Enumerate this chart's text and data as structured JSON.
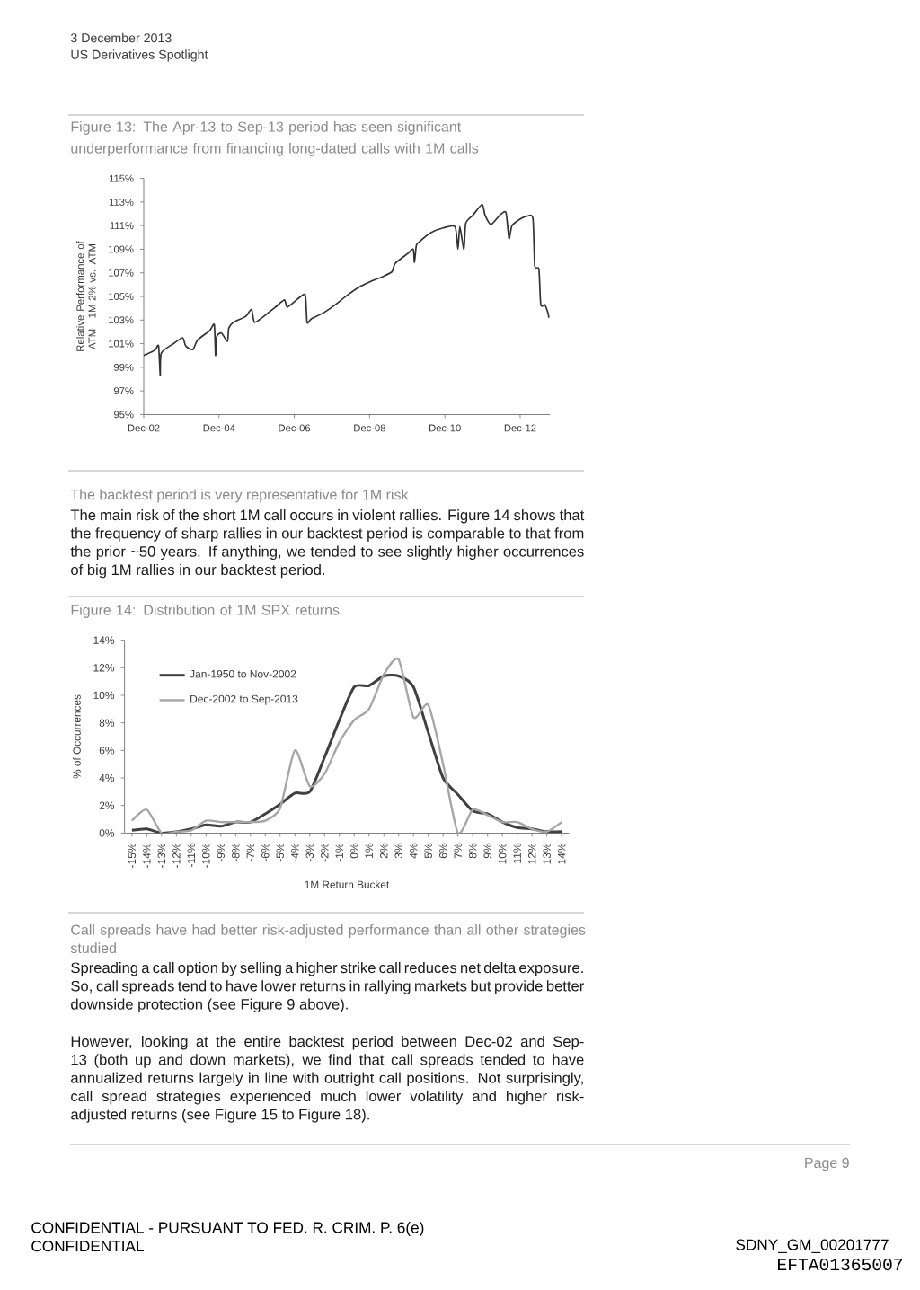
{
  "chart_data": [
    {
      "type": "other",
      "annotations": [
        "3 December 2013",
        "US Derivatives Spotlight"
      ]
    },
    {
      "type": "line",
      "title": "Figure 13: The Apr-13 to Sep-13 period has seen significant underperformance from financing long-dated calls with 1M calls",
      "ylabel": "Relative Performance of ATM - 1M 2% vs. ATM",
      "color": "#333333",
      "x": [
        "2002-12-01",
        "2003-02-15",
        "2003-03-25",
        "2003-04-24",
        "2003-05-10",
        "2003-05-20",
        "2003-09-16",
        "2003-12-13",
        "2004-01-12",
        "2004-03-21",
        "2004-05-06",
        "2004-09-01",
        "2004-10-16",
        "2004-10-28",
        "2004-11-09",
        "2004-12-25",
        "2005-02-21",
        "2005-03-05",
        "2005-04-19",
        "2005-08-15",
        "2005-10-12",
        "2005-11-10",
        "2006-02-06",
        "2006-06-01",
        "2006-08-28",
        "2006-09-25",
        "2007-01-19",
        "2007-03-18",
        "2007-04-04",
        "2007-05-15",
        "2007-09-09",
        "2008-01-03",
        "2008-04-28",
        "2008-08-22",
        "2008-12-18",
        "2009-04-12",
        "2009-07-07",
        "2009-08-06",
        "2009-12-01",
        "2010-01-28",
        "2010-02-09",
        "2010-02-27",
        "2010-03-25",
        "2010-07-19",
        "2010-11-15",
        "2011-03-10",
        "2011-04-07",
        "2011-04-25",
        "2011-06-04",
        "2011-06-22",
        "2011-09-01",
        "2011-11-28",
        "2011-12-25",
        "2012-02-22",
        "2012-05-19",
        "2012-07-16",
        "2012-08-15",
        "2012-09-13",
        "2012-12-10",
        "2013-02-07",
        "2013-04-04",
        "2013-04-22",
        "2013-06-01",
        "2013-06-19",
        "2013-07-29",
        "2013-08-28",
        "2013-09-06"
      ],
      "values": [
        100.0,
        100.3,
        100.5,
        100.8,
        98.3,
        100.2,
        101.0,
        101.5,
        100.8,
        100.5,
        101.3,
        102.1,
        102.6,
        100.0,
        101.6,
        101.9,
        101.2,
        102.3,
        102.8,
        103.3,
        103.9,
        102.8,
        103.3,
        104.1,
        104.7,
        104.1,
        104.9,
        105.1,
        102.8,
        103.1,
        103.6,
        104.3,
        105.1,
        105.8,
        106.3,
        106.7,
        107.1,
        107.8,
        108.6,
        109.0,
        107.9,
        109.3,
        109.6,
        110.4,
        110.8,
        110.9,
        109.0,
        110.9,
        109.0,
        111.2,
        111.9,
        112.8,
        111.9,
        111.1,
        111.9,
        112.1,
        109.9,
        111.0,
        111.6,
        111.8,
        111.6,
        107.6,
        107.3,
        104.3,
        104.3,
        103.6,
        103.2
      ],
      "xlim": [
        "2002-12",
        "2013-09-15"
      ],
      "xticks": [
        {
          "value": "2002-12",
          "label": "Dec-02"
        },
        {
          "value": "2004-12",
          "label": "Dec-04"
        },
        {
          "value": "2006-12",
          "label": "Dec-06"
        },
        {
          "value": "2008-12",
          "label": "Dec-08"
        },
        {
          "value": "2010-12",
          "label": "Dec-10"
        },
        {
          "value": "2012-12",
          "label": "Dec-12"
        }
      ],
      "ylim": [
        95,
        115
      ],
      "yticks": [
        {
          "value": 95,
          "label": "95%"
        },
        {
          "value": 97,
          "label": "97%"
        },
        {
          "value": 99,
          "label": "99%"
        },
        {
          "value": 101,
          "label": "101%"
        },
        {
          "value": 103,
          "label": "103%"
        },
        {
          "value": 105,
          "label": "105%"
        },
        {
          "value": 107,
          "label": "107%"
        },
        {
          "value": 109,
          "label": "109%"
        },
        {
          "value": 111,
          "label": "111%"
        },
        {
          "value": 113,
          "label": "113%"
        },
        {
          "value": 115,
          "label": "115%"
        }
      ]
    },
    {
      "type": "other",
      "title": "The backtest period is very representative for 1M risk",
      "annotations": [
        "The main risk of the short 1M call occurs in violent rallies. Figure 14 shows that the frequency of sharp rallies in our backtest period is comparable to that from the prior ~50 years. If anything, we tended to see slightly higher occurrences of big 1M rallies in our backtest period."
      ]
    },
    {
      "type": "line",
      "title": "Figure 14: Distribution of 1M SPX returns",
      "xlabel": "1M Return Bucket",
      "ylabel": "% of Occurrences",
      "categories": [
        "-15%",
        "-14%",
        "-13%",
        "-12%",
        "-11%",
        "-10%",
        "-9%",
        "-8%",
        "-7%",
        "-6%",
        "-5%",
        "-4%",
        "-3%",
        "-2%",
        "-1%",
        "0%",
        "1%",
        "2%",
        "3%",
        "4%",
        "5%",
        "6%",
        "7%",
        "8%",
        "9%",
        "10%",
        "11%",
        "12%",
        "13%",
        "14%"
      ],
      "series": [
        {
          "name": "Jan-1950 to Nov-2002",
          "color": "#404040",
          "values": [
            0.2,
            0.3,
            0.0,
            0.1,
            0.3,
            0.6,
            0.5,
            0.8,
            0.8,
            1.4,
            2.1,
            2.9,
            3.0,
            5.5,
            8.2,
            10.6,
            10.7,
            11.4,
            11.4,
            10.6,
            7.3,
            4.0,
            2.8,
            1.6,
            1.4,
            0.8,
            0.4,
            0.3,
            0.1,
            0.1
          ]
        },
        {
          "name": "Dec-2002 to Sep-2013",
          "color": "#a6a6a6",
          "values": [
            0.9,
            1.7,
            0.0,
            0.1,
            0.2,
            0.9,
            0.8,
            0.8,
            0.8,
            0.9,
            1.8,
            6.0,
            3.4,
            4.3,
            6.6,
            8.2,
            9.0,
            11.5,
            12.6,
            8.4,
            9.3,
            5.0,
            0.0,
            1.7,
            1.3,
            0.8,
            0.8,
            0.3,
            0.1,
            0.8
          ]
        }
      ],
      "ylim": [
        0,
        14
      ],
      "yticks": [
        {
          "value": 0,
          "label": "0%"
        },
        {
          "value": 2,
          "label": "2%"
        },
        {
          "value": 4,
          "label": "4%"
        },
        {
          "value": 6,
          "label": "6%"
        },
        {
          "value": 8,
          "label": "8%"
        },
        {
          "value": 10,
          "label": "10%"
        },
        {
          "value": 12,
          "label": "12%"
        },
        {
          "value": 14,
          "label": "14%"
        }
      ],
      "legend": "top left"
    },
    {
      "type": "other",
      "title": "Call spreads have had better risk-adjusted performance than all other strategies studied",
      "annotations": [
        "Spreading a call option by selling a higher strike call reduces net delta exposure. So, call spreads tend to have lower returns in rallying markets but provide better downside protection (see Figure 9 above).",
        "However, looking at the entire backtest period between Dec-02 and Sep-13 (both up and down markets), we find that call spreads tended to have annualized returns largely in line with outright call positions. Not surprisingly, call spread strategies experienced much lower volatility and higher risk-adjusted returns (see Figure 15 to Figure 18)."
      ]
    },
    {
      "type": "other",
      "annotations": [
        "Page 9",
        "CONFIDENTIAL - PURSUANT TO FED. R. CRIM. P. 6(e)",
        "CONFIDENTIAL",
        "SDNY_GM_00201777",
        "EFTA01365007"
      ]
    }
  ]
}
